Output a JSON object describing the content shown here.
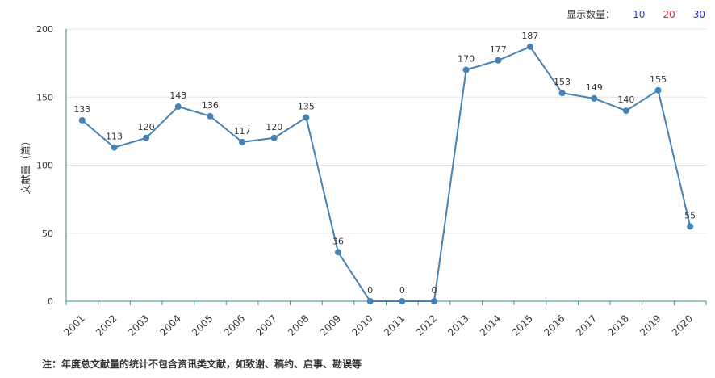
{
  "display_count": {
    "label": "显示数量：",
    "options": [
      "10",
      "20",
      "30"
    ]
  },
  "footnote": "注：年度总文献量的统计不包含资讯类文献，如致谢、稿约、启事、勘误等",
  "colors": {
    "line": "#4682b4",
    "axis": "#3a8e8e",
    "grid": "#e3e3e3"
  },
  "chart_data": {
    "type": "line",
    "categories": [
      "2001",
      "2002",
      "2003",
      "2004",
      "2005",
      "2006",
      "2007",
      "2008",
      "2009",
      "2010",
      "2011",
      "2012",
      "2013",
      "2014",
      "2015",
      "2016",
      "2017",
      "2018",
      "2019",
      "2020"
    ],
    "series": [
      {
        "values": [
          133,
          113,
          120,
          143,
          136,
          117,
          120,
          135,
          36,
          0,
          0,
          0,
          170,
          177,
          187,
          153,
          149,
          140,
          155,
          55
        ]
      }
    ],
    "ylabel": "文献量（篇）",
    "xlabel": "",
    "ylim": [
      0,
      200
    ],
    "yticks": [
      0,
      50,
      100,
      150,
      200
    ],
    "grid": true,
    "data_labels": true
  }
}
